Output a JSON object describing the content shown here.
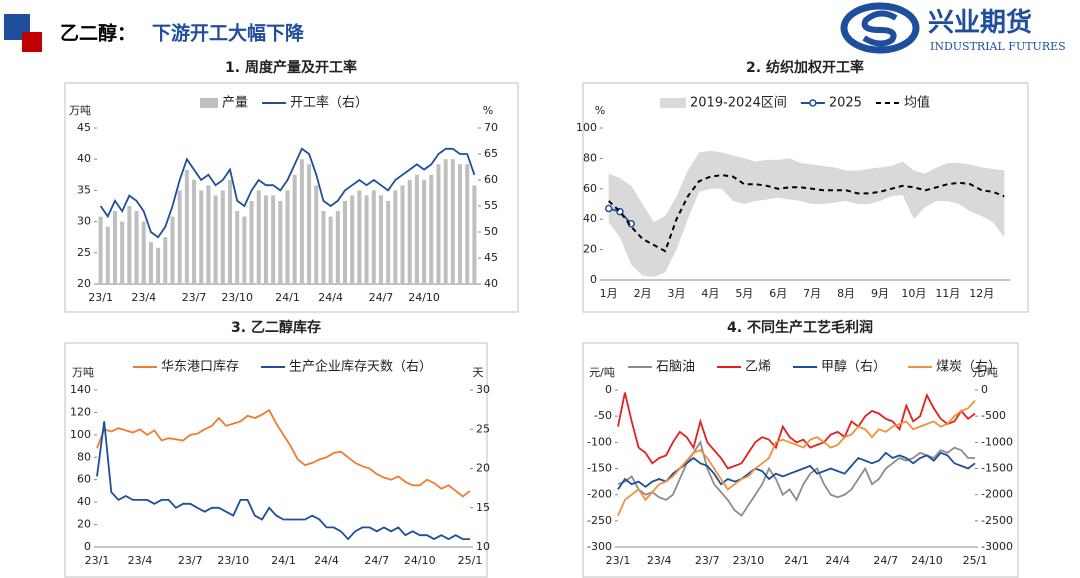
{
  "header": {
    "title_prefix": "乙二醇：",
    "title": "下游开工大幅下降",
    "logo_text": "兴业期货",
    "logo_subtext": "INDUSTRIAL FUTURES"
  },
  "chart_data": [
    {
      "type": "combo",
      "title": "1. 周度产量及开工率",
      "y_label": "万吨",
      "y2_label": "%",
      "categories": [
        "23/1",
        null,
        null,
        null,
        null,
        null,
        "23/4",
        null,
        null,
        null,
        null,
        null,
        null,
        "23/7",
        null,
        null,
        null,
        null,
        null,
        "23/10",
        null,
        null,
        null,
        null,
        null,
        null,
        "24/1",
        null,
        null,
        null,
        null,
        null,
        "24/4",
        null,
        null,
        null,
        null,
        null,
        null,
        "24/7",
        null,
        null,
        null,
        null,
        null,
        "24/10",
        null,
        null,
        null,
        null,
        null,
        null,
        null
      ],
      "series": [
        {
          "name": "产量",
          "type": "bar",
          "color": "#bfbfbf",
          "values": [
            30.8,
            29.2,
            31.7,
            30.0,
            32.5,
            31.7,
            30.0,
            26.7,
            25.8,
            27.5,
            30.8,
            35.0,
            38.3,
            36.7,
            35.0,
            35.8,
            34.2,
            35.0,
            36.7,
            31.7,
            30.8,
            33.3,
            35.0,
            34.2,
            34.2,
            33.3,
            35.0,
            37.5,
            40.0,
            39.2,
            35.8,
            31.7,
            30.8,
            31.7,
            33.3,
            34.2,
            35.0,
            34.2,
            35.0,
            34.2,
            33.3,
            35.0,
            35.8,
            36.7,
            37.5,
            36.7,
            37.5,
            39.2,
            40.0,
            40.0,
            39.2,
            39.2,
            35.8
          ]
        },
        {
          "name": "开工率（右）",
          "type": "line",
          "axis": "y2",
          "color": "#1f4e9c",
          "values": [
            55,
            53,
            56,
            54,
            57,
            56,
            54,
            50,
            49,
            51,
            55,
            60,
            64,
            62,
            60,
            61,
            59,
            60,
            62,
            56,
            55,
            58,
            60,
            59,
            59,
            58,
            60,
            63,
            66,
            65,
            61,
            56,
            55,
            56,
            58,
            59,
            60,
            59,
            60,
            59,
            58,
            60,
            61,
            62,
            63,
            62,
            63,
            65,
            66,
            66,
            65,
            65,
            61
          ]
        }
      ],
      "ylim": [
        20,
        45
      ],
      "yticks": [
        20,
        25,
        30,
        35,
        40,
        45
      ],
      "y2lim": [
        40,
        70
      ],
      "y2ticks": [
        40,
        45,
        50,
        55,
        60,
        65,
        70
      ]
    },
    {
      "type": "line",
      "title": "2. 纺织加权开工率",
      "y_label": "%",
      "categories": [
        "1月",
        null,
        null,
        "2月",
        null,
        null,
        "3月",
        null,
        null,
        "4月",
        null,
        null,
        "5月",
        null,
        null,
        "6月",
        null,
        null,
        "7月",
        null,
        null,
        "8月",
        null,
        null,
        "9月",
        null,
        null,
        "10月",
        null,
        null,
        "11月",
        null,
        null,
        "12月",
        null,
        null
      ],
      "series": [
        {
          "name": "2019-2024区间",
          "type": "band",
          "color": "#d9d9d9",
          "high": [
            70,
            67,
            62,
            50,
            38,
            42,
            55,
            72,
            84,
            85,
            84,
            82,
            80,
            78,
            79,
            79,
            80,
            77,
            76,
            75,
            74,
            72,
            72,
            73,
            74,
            75,
            78,
            72,
            70,
            74,
            77,
            77,
            76,
            74,
            73,
            72
          ],
          "low": [
            38,
            28,
            10,
            3,
            2,
            5,
            20,
            40,
            58,
            60,
            60,
            52,
            50,
            52,
            53,
            54,
            53,
            52,
            50,
            50,
            51,
            52,
            50,
            50,
            52,
            55,
            56,
            40,
            48,
            52,
            52,
            50,
            45,
            42,
            38,
            28
          ]
        },
        {
          "name": "2025",
          "type": "line",
          "color": "#1f4e9c",
          "markers": true,
          "values": [
            47,
            45,
            37,
            null,
            null,
            null,
            null,
            null,
            null,
            null,
            null,
            null,
            null,
            null,
            null,
            null,
            null,
            null,
            null,
            null,
            null,
            null,
            null,
            null,
            null,
            null,
            null,
            null,
            null,
            null,
            null,
            null,
            null,
            null,
            null,
            null
          ]
        },
        {
          "name": "均值",
          "type": "line",
          "color": "#000000",
          "dash": true,
          "values": [
            52,
            45,
            35,
            27,
            23,
            19,
            40,
            55,
            65,
            68,
            69,
            68,
            63,
            63,
            62,
            60,
            61,
            61,
            60,
            59,
            59,
            59,
            57,
            57,
            58,
            60,
            62,
            61,
            59,
            61,
            63,
            64,
            63,
            59,
            58,
            55
          ]
        }
      ],
      "ylim": [
        0,
        100
      ],
      "yticks": [
        0,
        20,
        40,
        60,
        80,
        100
      ]
    },
    {
      "type": "line",
      "title": "3. 乙二醇库存",
      "y_label": "万吨",
      "y2_label": "天",
      "categories": [
        "23/1",
        null,
        null,
        null,
        null,
        null,
        "23/4",
        null,
        null,
        null,
        null,
        null,
        null,
        "23/7",
        null,
        null,
        null,
        null,
        null,
        "23/10",
        null,
        null,
        null,
        null,
        null,
        null,
        "24/1",
        null,
        null,
        null,
        null,
        null,
        "24/4",
        null,
        null,
        null,
        null,
        null,
        null,
        "24/7",
        null,
        null,
        null,
        null,
        null,
        "24/10",
        null,
        null,
        null,
        null,
        null,
        null,
        "25/1"
      ],
      "series": [
        {
          "name": "华东港口库存",
          "type": "line",
          "color": "#ed7d31",
          "values": [
            88,
            105,
            103,
            106,
            104,
            102,
            105,
            100,
            104,
            95,
            97,
            96,
            95,
            100,
            101,
            105,
            108,
            115,
            108,
            110,
            112,
            117,
            115,
            118,
            122,
            110,
            100,
            90,
            78,
            73,
            75,
            78,
            80,
            84,
            85,
            80,
            75,
            72,
            70,
            65,
            62,
            60,
            63,
            58,
            55,
            55,
            60,
            57,
            52,
            55,
            50,
            45,
            50
          ]
        },
        {
          "name": "生产企业库存天数（右）",
          "type": "line",
          "axis": "y2",
          "color": "#1f4e9c",
          "values": [
            19,
            26,
            17,
            16,
            16.5,
            16,
            16,
            16,
            15.5,
            16,
            16,
            15,
            15.5,
            15.5,
            15,
            14.5,
            15,
            15,
            14.5,
            14,
            16,
            16,
            14,
            13.5,
            15,
            14,
            13.5,
            13.5,
            13.5,
            13.5,
            14,
            13.5,
            12.5,
            12.5,
            12,
            11,
            12,
            12.5,
            12.5,
            12,
            12.5,
            12,
            12.5,
            11.5,
            12,
            11.5,
            11.5,
            11,
            11.5,
            11,
            11.5,
            11,
            11
          ]
        }
      ],
      "ylim": [
        0,
        140
      ],
      "yticks": [
        0,
        20,
        40,
        60,
        80,
        100,
        120,
        140
      ],
      "y2lim": [
        10,
        30
      ],
      "y2ticks": [
        10,
        15,
        20,
        25,
        30
      ]
    },
    {
      "type": "line",
      "title": "4. 不同生产工艺毛利润",
      "y_label": "元/吨",
      "y2_label": "元/吨",
      "categories": [
        "23/1",
        null,
        null,
        null,
        null,
        null,
        "23/4",
        null,
        null,
        null,
        null,
        null,
        null,
        "23/7",
        null,
        null,
        null,
        null,
        null,
        "23/10",
        null,
        null,
        null,
        null,
        null,
        null,
        "24/1",
        null,
        null,
        null,
        null,
        null,
        "24/4",
        null,
        null,
        null,
        null,
        null,
        null,
        "24/7",
        null,
        null,
        null,
        null,
        null,
        "24/10",
        null,
        null,
        null,
        null,
        null,
        null,
        "25/1"
      ],
      "series": [
        {
          "name": "石脑油",
          "type": "line",
          "color": "#8c8c8c",
          "values": [
            -180,
            -175,
            -165,
            -190,
            -200,
            -195,
            -205,
            -210,
            -200,
            -170,
            -140,
            -120,
            -100,
            -150,
            -180,
            -195,
            -210,
            -230,
            -240,
            -220,
            -200,
            -180,
            -150,
            -170,
            -200,
            -190,
            -210,
            -180,
            -160,
            -150,
            -180,
            -200,
            -205,
            -200,
            -190,
            -170,
            -150,
            -180,
            -170,
            -150,
            -140,
            -130,
            -135,
            -130,
            -120,
            -125,
            -130,
            -115,
            -120,
            -110,
            -115,
            -130,
            -130
          ]
        },
        {
          "name": "乙烯",
          "type": "line",
          "color": "#e3201b",
          "values": [
            -70,
            -5,
            -60,
            -110,
            -120,
            -140,
            -130,
            -125,
            -100,
            -80,
            -90,
            -110,
            -60,
            -100,
            -115,
            -130,
            -150,
            -145,
            -140,
            -120,
            -100,
            -90,
            -95,
            -110,
            -70,
            -90,
            -100,
            -95,
            -110,
            -105,
            -100,
            -85,
            -80,
            -90,
            -60,
            -70,
            -50,
            -40,
            -45,
            -55,
            -60,
            -75,
            -30,
            -60,
            -50,
            -10,
            -35,
            -55,
            -65,
            -60,
            -40,
            -55,
            -45
          ]
        },
        {
          "name": "甲醇（右）",
          "type": "line",
          "axis": "y2",
          "color": "#1f4e9c",
          "values": [
            -1900,
            -1700,
            -1800,
            -1750,
            -1850,
            -1750,
            -1700,
            -1750,
            -1600,
            -1500,
            -1400,
            -1300,
            -1400,
            -1450,
            -1600,
            -1800,
            -1700,
            -1750,
            -1700,
            -1600,
            -1500,
            -1550,
            -1700,
            -1600,
            -1650,
            -1600,
            -1550,
            -1500,
            -1450,
            -1600,
            -1550,
            -1500,
            -1550,
            -1600,
            -1450,
            -1300,
            -1350,
            -1400,
            -1350,
            -1200,
            -1300,
            -1250,
            -1300,
            -1400,
            -1300,
            -1250,
            -1350,
            -1200,
            -1250,
            -1400,
            -1450,
            -1500,
            -1400
          ]
        },
        {
          "name": "煤炭（右）",
          "type": "line",
          "axis": "y2",
          "color": "#f0913c",
          "values": [
            -2400,
            -2100,
            -2000,
            -1900,
            -2100,
            -1950,
            -1800,
            -1750,
            -1650,
            -1500,
            -1350,
            -1200,
            -1150,
            -1300,
            -1500,
            -1700,
            -1900,
            -1800,
            -1700,
            -1650,
            -1500,
            -1400,
            -1300,
            -1000,
            -950,
            -1000,
            -1050,
            -1100,
            -950,
            -900,
            -1000,
            -1100,
            -1050,
            -900,
            -850,
            -700,
            -750,
            -900,
            -750,
            -800,
            -700,
            -650,
            -600,
            -750,
            -700,
            -650,
            -600,
            -700,
            -650,
            -500,
            -400,
            -350,
            -200
          ]
        }
      ],
      "ylim": [
        -300,
        0
      ],
      "yticks": [
        -300,
        -250,
        -200,
        -150,
        -100,
        -50,
        0
      ],
      "y2lim": [
        -3000,
        0
      ],
      "y2ticks": [
        -3000,
        -2500,
        -2000,
        -1500,
        -1000,
        -500,
        0
      ]
    }
  ]
}
